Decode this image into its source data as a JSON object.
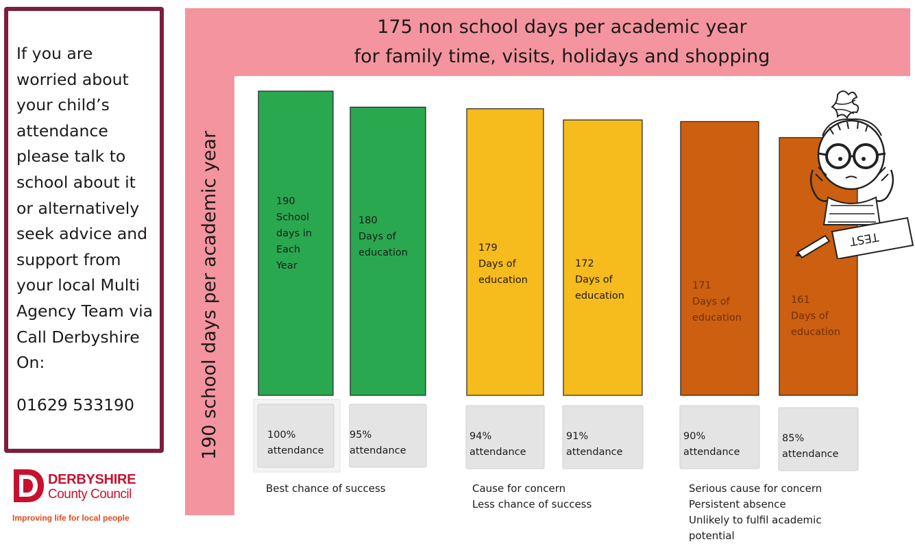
{
  "info_panel": {
    "text": "If you are\nworried about\nyour child’s\nattendance\nplease talk to\nschool about it\nor alternatively\nseek advice and\nsupport from\nyour local Multi\nAgency Team via\nCall Derbyshire\nOn:",
    "phone": "01629 533190",
    "border_color": "#7d1d3f"
  },
  "logo": {
    "name": "DERBYSHIRE",
    "subname": "County Council",
    "tagline": "Improving life for local people",
    "color": "#c8102e"
  },
  "top_title": "175 non school days per academic  year\nfor family time, visits, holidays and shopping",
  "side_title": "190 school days per academic year",
  "chart_data": {
    "type": "bar",
    "categories": [
      "100% attendance",
      "95% attendance",
      "94% attendance",
      "91% attendance",
      "90% attendance",
      "85% attendance"
    ],
    "values": [
      190,
      180,
      179,
      172,
      171,
      161
    ],
    "bar_labels": [
      [
        "190",
        "School",
        "days in",
        "Each",
        "Year"
      ],
      [
        "180",
        "Days of",
        "education"
      ],
      [
        "179",
        "Days of",
        "education"
      ],
      [
        "172",
        "Days of",
        "education"
      ],
      [
        "171",
        "Days of",
        "education"
      ],
      [
        "161",
        "Days of",
        "education"
      ]
    ],
    "category_lines": [
      [
        "100%",
        "attendance"
      ],
      [
        "95%",
        "attendance"
      ],
      [
        "94%",
        "attendance"
      ],
      [
        "91%",
        "attendance"
      ],
      [
        "90%",
        "attendance"
      ],
      [
        "85%",
        "attendance"
      ]
    ],
    "colors": [
      "#2aa84f",
      "#2aa84f",
      "#f6bb1c",
      "#f6bb1c",
      "#cc5f10",
      "#cc5f10"
    ],
    "groups": [
      {
        "label": "Best chance of success"
      },
      {
        "label": "Cause for concern\nLess chance of success"
      },
      {
        "label": "Serious cause for concern\nPersistent absence\nUnlikely to fulfil academic\npotential"
      }
    ],
    "legend": "none",
    "grid": false
  },
  "illustration": {
    "icon": "worried-student-icon",
    "paper_text": "TEST"
  }
}
